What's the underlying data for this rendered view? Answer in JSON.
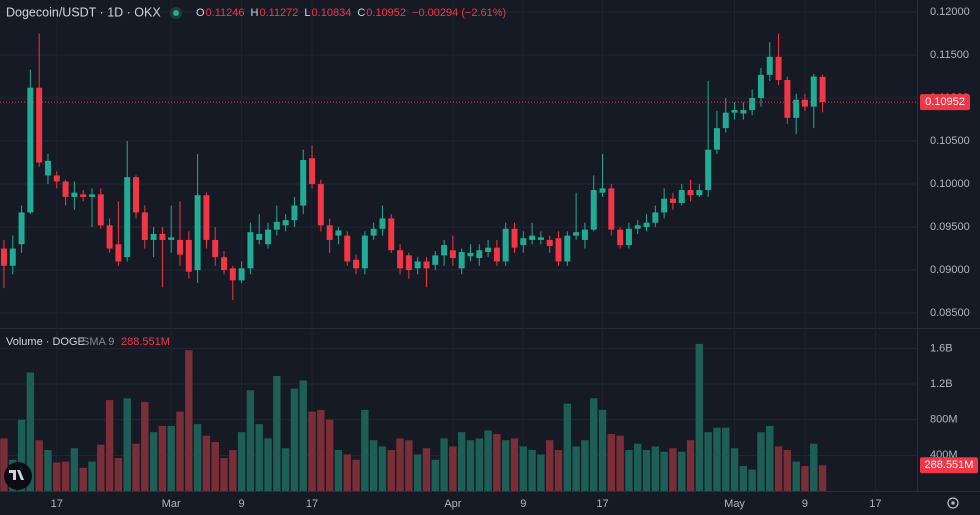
{
  "chart_data": [
    {
      "type": "candlestick",
      "title": "Dogecoin/USDT · 1D · OKX",
      "legend": [
        {
          "key": "O",
          "value": "0.11246"
        },
        {
          "key": "H",
          "value": "0.11272"
        },
        {
          "key": "L",
          "value": "0.10834"
        },
        {
          "key": "C",
          "value": "0.10952"
        }
      ],
      "change": "−0.00294 (−2.61%)",
      "last_price_label": "0.10952",
      "up_color": "#22ab94",
      "down_color": "#f23645",
      "open": [
        0.0925,
        0.0905,
        0.093,
        0.0967,
        0.1112,
        0.101,
        0.101,
        0.1003,
        0.0985,
        0.0988,
        0.0985,
        0.0988,
        0.0952,
        0.093,
        0.0915,
        0.1008,
        0.0967,
        0.0935,
        0.0942,
        0.0935,
        0.0935,
        0.0935,
        0.09,
        0.0987,
        0.0935,
        0.0915,
        0.0902,
        0.0888,
        0.0902,
        0.0935,
        0.093,
        0.0947,
        0.0952,
        0.0958,
        0.0975,
        0.103,
        0.1,
        0.0952,
        0.094,
        0.094,
        0.0912,
        0.0902,
        0.094,
        0.0948,
        0.096,
        0.0923,
        0.0917,
        0.0902,
        0.091,
        0.0906,
        0.0917,
        0.0923,
        0.0902,
        0.0916,
        0.0914,
        0.0921,
        0.0926,
        0.091,
        0.0948,
        0.0929,
        0.0935,
        0.0935,
        0.0935,
        0.0937,
        0.091,
        0.094,
        0.0935,
        0.0947,
        0.099,
        0.0995,
        0.0947,
        0.0929,
        0.0948,
        0.095,
        0.0955,
        0.0967,
        0.0983,
        0.0978,
        0.0993,
        0.0987,
        0.0993,
        0.104,
        0.1065,
        0.1083,
        0.1082,
        0.1086,
        0.11,
        0.1127,
        0.1148,
        0.1121,
        0.1077,
        0.1098,
        0.109,
        0.11246
      ],
      "high": [
        0.0935,
        0.094,
        0.0975,
        0.1133,
        0.1175,
        0.1035,
        0.1015,
        0.1005,
        0.1003,
        0.0993,
        0.0995,
        0.0995,
        0.096,
        0.098,
        0.105,
        0.101,
        0.0975,
        0.095,
        0.095,
        0.0975,
        0.098,
        0.0945,
        0.1035,
        0.099,
        0.095,
        0.0922,
        0.0905,
        0.091,
        0.0955,
        0.0965,
        0.0955,
        0.0975,
        0.0965,
        0.0985,
        0.104,
        0.1045,
        0.1005,
        0.096,
        0.095,
        0.0945,
        0.0918,
        0.0945,
        0.0955,
        0.0975,
        0.0965,
        0.093,
        0.092,
        0.0915,
        0.0915,
        0.0922,
        0.0935,
        0.094,
        0.0925,
        0.093,
        0.093,
        0.0935,
        0.0935,
        0.0955,
        0.0955,
        0.0945,
        0.0955,
        0.0945,
        0.094,
        0.0945,
        0.0945,
        0.099,
        0.0955,
        0.101,
        0.1035,
        0.1,
        0.095,
        0.0955,
        0.0958,
        0.0965,
        0.0975,
        0.0995,
        0.099,
        0.1,
        0.1005,
        0.1,
        0.112,
        0.1085,
        0.11,
        0.1095,
        0.1095,
        0.111,
        0.1135,
        0.1165,
        0.1175,
        0.1125,
        0.1105,
        0.1105,
        0.1128,
        0.11272
      ],
      "low": [
        0.0879,
        0.0895,
        0.092,
        0.0965,
        0.102,
        0.1,
        0.0995,
        0.0975,
        0.097,
        0.098,
        0.095,
        0.0948,
        0.092,
        0.0905,
        0.091,
        0.096,
        0.0925,
        0.0915,
        0.088,
        0.092,
        0.0905,
        0.089,
        0.0885,
        0.0925,
        0.0905,
        0.0895,
        0.0865,
        0.0885,
        0.0895,
        0.093,
        0.0925,
        0.094,
        0.0945,
        0.095,
        0.0965,
        0.0995,
        0.0945,
        0.092,
        0.093,
        0.0905,
        0.0895,
        0.0895,
        0.0935,
        0.094,
        0.092,
        0.0895,
        0.089,
        0.0895,
        0.088,
        0.09,
        0.0905,
        0.0905,
        0.0895,
        0.091,
        0.0905,
        0.0915,
        0.0905,
        0.0905,
        0.092,
        0.092,
        0.093,
        0.093,
        0.092,
        0.0905,
        0.0905,
        0.0935,
        0.0925,
        0.0945,
        0.0985,
        0.094,
        0.0925,
        0.0925,
        0.0942,
        0.0945,
        0.095,
        0.096,
        0.097,
        0.0975,
        0.098,
        0.0985,
        0.0985,
        0.1035,
        0.106,
        0.1075,
        0.1075,
        0.108,
        0.109,
        0.112,
        0.1115,
        0.107,
        0.1058,
        0.1085,
        0.1065,
        0.10834
      ],
      "close": [
        0.0905,
        0.0925,
        0.0967,
        0.1112,
        0.1025,
        0.1027,
        0.1003,
        0.0985,
        0.099,
        0.0985,
        0.0988,
        0.0952,
        0.0925,
        0.091,
        0.1008,
        0.0967,
        0.0935,
        0.0942,
        0.0935,
        0.0938,
        0.0918,
        0.0898,
        0.0987,
        0.0935,
        0.0915,
        0.09,
        0.0888,
        0.0902,
        0.0944,
        0.0942,
        0.0947,
        0.0956,
        0.0958,
        0.0975,
        0.1028,
        0.1,
        0.0952,
        0.0935,
        0.0946,
        0.091,
        0.0902,
        0.094,
        0.0948,
        0.096,
        0.0923,
        0.0902,
        0.09,
        0.091,
        0.0902,
        0.0917,
        0.0929,
        0.0914,
        0.0921,
        0.092,
        0.0923,
        0.0926,
        0.091,
        0.0948,
        0.0926,
        0.0937,
        0.094,
        0.0938,
        0.0928,
        0.091,
        0.094,
        0.0944,
        0.0947,
        0.0993,
        0.0995,
        0.0947,
        0.0929,
        0.0948,
        0.0952,
        0.0955,
        0.0967,
        0.0983,
        0.0978,
        0.0993,
        0.0987,
        0.0993,
        0.104,
        0.1065,
        0.1083,
        0.1086,
        0.1086,
        0.11,
        0.1127,
        0.1148,
        0.1121,
        0.1077,
        0.1098,
        0.109,
        0.1125,
        0.10952
      ],
      "xlim": [
        -0.45,
        103.5
      ],
      "xticks": [
        {
          "value": 6,
          "label": "17"
        },
        {
          "value": 19,
          "label": "Mar"
        },
        {
          "value": 27,
          "label": "9"
        },
        {
          "value": 35,
          "label": "17"
        },
        {
          "value": 51,
          "label": "Apr"
        },
        {
          "value": 59,
          "label": "9"
        },
        {
          "value": 68,
          "label": "17"
        },
        {
          "value": 83,
          "label": "May"
        },
        {
          "value": 91,
          "label": "9"
        },
        {
          "value": 99,
          "label": "17"
        }
      ],
      "ylim": [
        0.08326,
        0.1214
      ],
      "yticks": [
        {
          "value": 0.085,
          "label": "0.08500"
        },
        {
          "value": 0.09,
          "label": "0.09000"
        },
        {
          "value": 0.095,
          "label": "0.09500"
        },
        {
          "value": 0.1,
          "label": "0.10000"
        },
        {
          "value": 0.105,
          "label": "0.10500"
        },
        {
          "value": 0.11,
          "label": "0.11000"
        },
        {
          "value": 0.115,
          "label": "0.11500"
        },
        {
          "value": 0.12,
          "label": "0.12000"
        }
      ],
      "grid": true
    },
    {
      "type": "bar",
      "title": "Volume · DOGE",
      "indicator": "SMA 9",
      "indicator_value": "288.551M",
      "up_color": "#1d5f56",
      "down_color": "#7a2e37",
      "values": [
        590,
        350,
        800,
        1330,
        570,
        460,
        320,
        330,
        480,
        260,
        330,
        520,
        1020,
        370,
        1040,
        530,
        1000,
        660,
        730,
        730,
        890,
        1580,
        750,
        620,
        550,
        370,
        460,
        660,
        1130,
        750,
        590,
        1290,
        480,
        1150,
        1240,
        890,
        910,
        800,
        460,
        410,
        350,
        910,
        570,
        500,
        460,
        590,
        570,
        410,
        480,
        350,
        590,
        500,
        660,
        570,
        590,
        680,
        640,
        570,
        590,
        500,
        460,
        410,
        570,
        460,
        980,
        500,
        570,
        1040,
        910,
        640,
        620,
        460,
        530,
        460,
        500,
        440,
        480,
        440,
        570,
        1650,
        660,
        710,
        710,
        480,
        280,
        240,
        660,
        730,
        500,
        460,
        330,
        280,
        530,
        288.551
      ],
      "ylim": [
        0,
        1750
      ],
      "yticks": [
        {
          "value": 400,
          "label": "400M"
        },
        {
          "value": 800,
          "label": "800M"
        },
        {
          "value": 1200,
          "label": "1.2B"
        },
        {
          "value": 1600,
          "label": "1.6B"
        }
      ]
    }
  ]
}
